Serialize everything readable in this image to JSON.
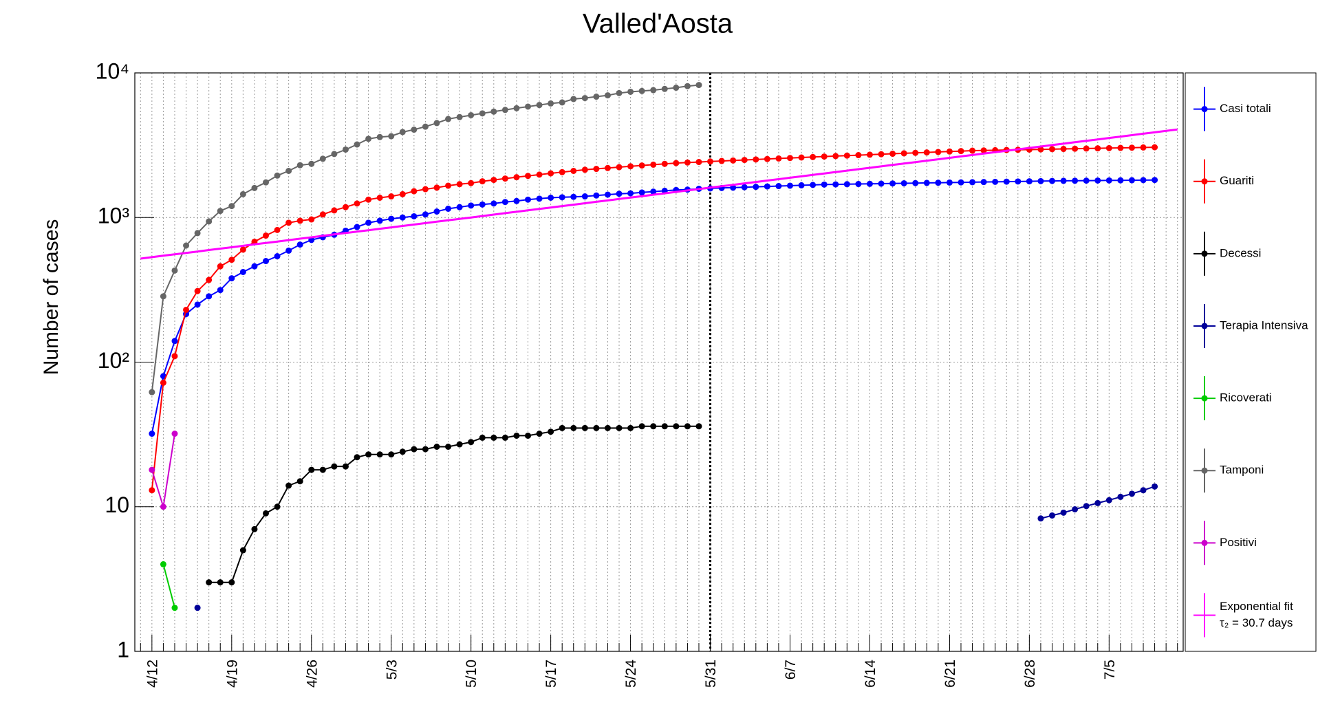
{
  "chart_data": {
    "type": "line",
    "title": "Valled'Aosta",
    "ylabel": "Number of cases",
    "log_y": true,
    "grid": true,
    "legend": "right",
    "vline": "5/31",
    "ylim": [
      1,
      10000
    ],
    "yticks": [
      1,
      10,
      {
        "value": 100,
        "label": "10²"
      },
      {
        "value": 1000,
        "label": "10³"
      },
      {
        "value": 10000,
        "label": "10⁴"
      }
    ],
    "categories": [
      null,
      "4/12",
      null,
      null,
      null,
      null,
      null,
      null,
      "4/19",
      null,
      null,
      null,
      null,
      null,
      null,
      "4/26",
      null,
      null,
      null,
      null,
      null,
      null,
      "5/3",
      null,
      null,
      null,
      null,
      null,
      null,
      "5/10",
      null,
      null,
      null,
      null,
      null,
      null,
      "5/17",
      null,
      null,
      null,
      null,
      null,
      null,
      "5/24",
      null,
      null,
      null,
      null,
      null,
      null,
      "5/31",
      null,
      null,
      null,
      null,
      null,
      null,
      "6/7",
      null,
      null,
      null,
      null,
      null,
      null,
      "6/14",
      null,
      null,
      null,
      null,
      null,
      null,
      "6/21",
      null,
      null,
      null,
      null,
      null,
      null,
      "6/28",
      null,
      null,
      null,
      null,
      null,
      null,
      "7/5",
      null,
      null,
      null,
      null,
      null,
      null
    ],
    "series": [
      {
        "name": "Casi totali",
        "color": "#0000ff",
        "values": [
          null,
          32,
          80,
          140,
          215,
          250,
          285,
          315,
          380,
          420,
          460,
          500,
          540,
          590,
          650,
          700,
          730,
          760,
          810,
          860,
          920,
          950,
          980,
          1000,
          1020,
          1050,
          1100,
          1150,
          1180,
          1210,
          1230,
          1250,
          1280,
          1300,
          1330,
          1350,
          1370,
          1380,
          1390,
          1400,
          1420,
          1440,
          1460,
          1470,
          1490,
          1510,
          1530,
          1550,
          1560,
          1580,
          1590,
          1600,
          1610,
          1620,
          1630,
          1640,
          1650,
          1660,
          1670,
          1680,
          1690,
          1695,
          1700,
          1705,
          1710,
          1715,
          1720,
          1725,
          1730,
          1735,
          1740,
          1745,
          1750,
          1755,
          1760,
          1765,
          1770,
          1775,
          1780,
          1785,
          1790,
          1793,
          1796,
          1799,
          1802,
          1805,
          1808,
          1811,
          1814,
          1817,
          null,
          null
        ]
      },
      {
        "name": "Guariti",
        "color": "#ff0000",
        "values": [
          null,
          13,
          72,
          110,
          230,
          310,
          370,
          460,
          510,
          600,
          680,
          750,
          820,
          920,
          950,
          970,
          1050,
          1120,
          1180,
          1250,
          1330,
          1370,
          1400,
          1450,
          1520,
          1570,
          1610,
          1660,
          1700,
          1730,
          1780,
          1820,
          1860,
          1900,
          1940,
          1980,
          2020,
          2060,
          2100,
          2140,
          2170,
          2200,
          2230,
          2260,
          2290,
          2320,
          2350,
          2380,
          2400,
          2420,
          2440,
          2460,
          2480,
          2500,
          2520,
          2540,
          2560,
          2580,
          2600,
          2620,
          2640,
          2660,
          2680,
          2700,
          2720,
          2740,
          2760,
          2780,
          2800,
          2820,
          2840,
          2860,
          2880,
          2900,
          2910,
          2920,
          2930,
          2940,
          2950,
          2960,
          2970,
          2980,
          2990,
          3000,
          3010,
          3020,
          3030,
          3040,
          3050,
          3060,
          null,
          null
        ]
      },
      {
        "name": "Decessi",
        "color": "#000000",
        "values": [
          null,
          null,
          null,
          null,
          null,
          null,
          3,
          3,
          3,
          5,
          7,
          9,
          10,
          14,
          15,
          18,
          18,
          19,
          19,
          22,
          23,
          23,
          23,
          24,
          25,
          25,
          26,
          26,
          27,
          28,
          30,
          30,
          30,
          31,
          31,
          32,
          33,
          35,
          35,
          35,
          35,
          35,
          35,
          35,
          36,
          36,
          36,
          36,
          36,
          36,
          null,
          null,
          null,
          null,
          null,
          null,
          null,
          null,
          null,
          null,
          null,
          null,
          null,
          null,
          null,
          null,
          null,
          null,
          null,
          null,
          null,
          null,
          null,
          null,
          null,
          null,
          null,
          null,
          null,
          null,
          null,
          null,
          null,
          null,
          null,
          null,
          null,
          null,
          null,
          null,
          null,
          null
        ]
      },
      {
        "name": "Terapia Intensiva",
        "color": "#000099",
        "values": [
          null,
          null,
          null,
          null,
          null,
          2,
          null,
          null,
          null,
          null,
          null,
          null,
          null,
          null,
          null,
          null,
          null,
          null,
          null,
          null,
          null,
          null,
          null,
          null,
          null,
          null,
          null,
          null,
          null,
          null,
          null,
          null,
          null,
          null,
          null,
          null,
          null,
          null,
          null,
          null,
          null,
          null,
          null,
          null,
          null,
          null,
          null,
          null,
          null,
          null,
          null,
          null,
          null,
          null,
          null,
          null,
          null,
          null,
          null,
          null,
          null,
          null,
          null,
          null,
          null,
          null,
          null,
          null,
          null,
          null,
          null,
          null,
          null,
          null,
          null,
          null,
          null,
          null,
          null,
          8.3,
          8.7,
          9.1,
          9.6,
          10.1,
          10.6,
          11.1,
          11.7,
          12.3,
          13,
          13.8,
          null,
          null
        ]
      },
      {
        "name": "Ricoverati",
        "color": "#00cc00",
        "values": [
          null,
          null,
          4,
          2,
          null,
          null,
          null,
          null,
          null,
          null,
          null,
          null,
          null,
          null,
          null,
          null,
          null,
          null,
          null,
          null,
          null,
          null,
          null,
          null,
          null,
          null,
          null,
          null,
          null,
          null,
          null,
          null,
          null,
          null,
          null,
          null,
          null,
          null,
          null,
          null,
          null,
          null,
          null,
          null,
          null,
          null,
          null,
          null,
          null,
          null,
          null,
          null,
          null,
          null,
          null,
          null,
          null,
          null,
          null,
          null,
          null,
          null,
          null,
          null,
          null,
          null,
          null,
          null,
          null,
          null,
          null,
          null,
          null,
          null,
          null,
          null,
          null,
          null,
          null,
          null,
          null,
          null,
          null,
          null,
          null,
          null,
          null,
          null,
          null,
          null,
          null,
          null
        ]
      },
      {
        "name": "Tamponi",
        "color": "#666666",
        "values": [
          null,
          62,
          285,
          430,
          640,
          780,
          940,
          1110,
          1200,
          1450,
          1600,
          1750,
          1950,
          2100,
          2300,
          2350,
          2550,
          2750,
          2950,
          3200,
          3500,
          3600,
          3650,
          3900,
          4050,
          4250,
          4500,
          4800,
          4950,
          5100,
          5250,
          5400,
          5550,
          5700,
          5850,
          6000,
          6150,
          6250,
          6600,
          6700,
          6850,
          7000,
          7250,
          7400,
          7500,
          7600,
          7750,
          7900,
          8100,
          8250,
          null,
          null,
          null,
          null,
          null,
          null,
          null,
          null,
          null,
          null,
          null,
          null,
          null,
          null,
          null,
          null,
          null,
          null,
          null,
          null,
          null,
          null,
          null,
          null,
          null,
          null,
          null,
          null,
          null,
          null,
          null,
          null,
          null,
          null,
          null,
          null,
          null,
          null,
          null,
          null,
          null,
          null
        ]
      },
      {
        "name": "Positivi",
        "color": "#cc00cc",
        "values": [
          null,
          18,
          10,
          32,
          null,
          null,
          null,
          null,
          null,
          null,
          null,
          null,
          null,
          null,
          null,
          null,
          null,
          null,
          null,
          null,
          null,
          null,
          null,
          null,
          null,
          null,
          null,
          null,
          null,
          null,
          null,
          null,
          null,
          null,
          null,
          null,
          null,
          null,
          null,
          null,
          null,
          null,
          null,
          null,
          null,
          null,
          null,
          null,
          null,
          null,
          null,
          null,
          null,
          null,
          null,
          null,
          null,
          null,
          null,
          null,
          null,
          null,
          null,
          null,
          null,
          null,
          null,
          null,
          null,
          null,
          null,
          null,
          null,
          null,
          null,
          null,
          null,
          null,
          null,
          null,
          null,
          null,
          null,
          null,
          null,
          null,
          null,
          null,
          null,
          null,
          null,
          null
        ]
      },
      {
        "name": "Exponential fit",
        "subtitle": "τ₂ = 30.7 days",
        "color": "#ff00ff",
        "fit": true,
        "values": [
          520,
          532,
          544,
          556,
          569,
          582,
          596,
          609,
          623,
          637,
          652,
          667,
          682,
          698,
          714,
          730,
          747,
          764,
          781,
          799,
          817,
          836,
          855,
          874,
          894,
          915,
          936,
          957,
          979,
          1001,
          1024,
          1048,
          1072,
          1096,
          1121,
          1147,
          1173,
          1200,
          1227,
          1255,
          1284,
          1313,
          1343,
          1374,
          1405,
          1437,
          1470,
          1503,
          1538,
          1573,
          1609,
          1646,
          1683,
          1722,
          1761,
          1801,
          1842,
          1884,
          1927,
          1971,
          2017,
          2063,
          2110,
          2158,
          2207,
          2258,
          2309,
          2362,
          2416,
          2471,
          2528,
          2586,
          2645,
          2705,
          2767,
          2830,
          2895,
          2961,
          3029,
          3098,
          3169,
          3241,
          3315,
          3391,
          3468,
          3548,
          3629,
          3712,
          3796,
          3883,
          3972,
          4063
        ]
      }
    ]
  }
}
